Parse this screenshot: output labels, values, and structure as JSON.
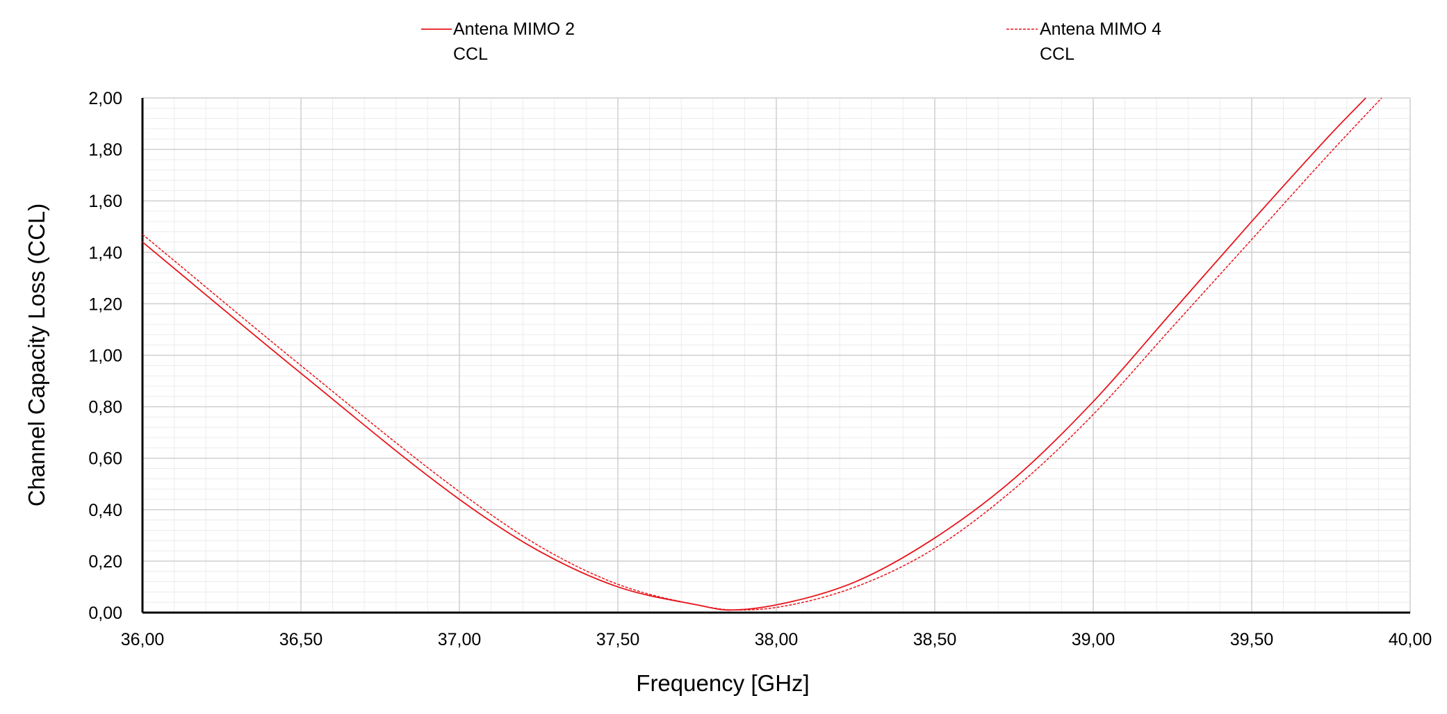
{
  "chart_data": {
    "type": "line",
    "xlabel": "Frequency [GHz]",
    "ylabel": "Channel Capacity Loss (CCL)",
    "xlim": [
      36,
      40
    ],
    "ylim": [
      0,
      2
    ],
    "x_ticks": [
      "36,00",
      "36,50",
      "37,00",
      "37,50",
      "38,00",
      "38,50",
      "39,00",
      "39,50",
      "40,00"
    ],
    "y_ticks": [
      "0,00",
      "0,20",
      "0,40",
      "0,60",
      "0,80",
      "1,00",
      "1,20",
      "1,40",
      "1,60",
      "1,80",
      "2,00"
    ],
    "grid": true,
    "minor_grid": true,
    "legend_position": "top",
    "series": [
      {
        "name": "Antena MIMO 2",
        "legend_line1": "Antena MIMO 2",
        "legend_line2": "CCL",
        "color": "#e8141b",
        "style": "solid",
        "x": [
          36.0,
          36.5,
          37.0,
          37.25,
          37.5,
          37.75,
          37.85,
          38.0,
          38.25,
          38.5,
          38.75,
          39.0,
          39.25,
          39.5,
          39.75,
          39.86
        ],
        "y": [
          1.44,
          0.93,
          0.44,
          0.24,
          0.1,
          0.03,
          0.01,
          0.03,
          0.12,
          0.29,
          0.52,
          0.82,
          1.17,
          1.52,
          1.86,
          2.0
        ]
      },
      {
        "name": "Antena MIMO 4",
        "legend_line1": "Antena MIMO 4",
        "legend_line2": "CCL",
        "color": "#e8141b",
        "style": "dashed",
        "x": [
          36.0,
          36.5,
          37.0,
          37.25,
          37.5,
          37.75,
          37.87,
          38.0,
          38.25,
          38.5,
          38.75,
          39.0,
          39.25,
          39.5,
          39.75,
          39.91
        ],
        "y": [
          1.47,
          0.96,
          0.47,
          0.26,
          0.11,
          0.03,
          0.01,
          0.02,
          0.1,
          0.25,
          0.48,
          0.77,
          1.11,
          1.45,
          1.79,
          2.0
        ]
      }
    ]
  }
}
